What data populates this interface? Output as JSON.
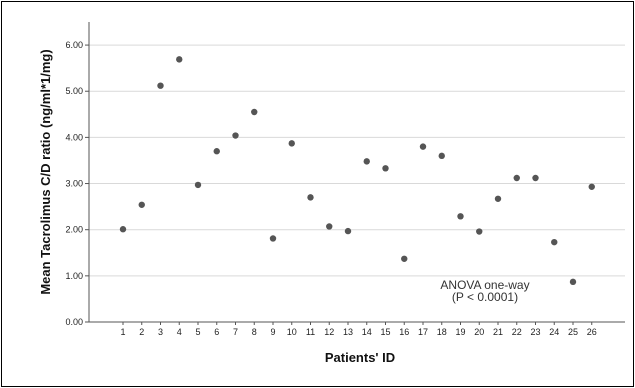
{
  "chart_data": {
    "type": "scatter",
    "xlabel": "Patients' ID",
    "ylabel": "Mean Tacrolimus C/D ratio (ng/ml*1/mg)",
    "ylim": [
      0,
      6.5
    ],
    "yticks": [
      "0.00",
      "1.00",
      "2.00",
      "3.00",
      "4.00",
      "5.00",
      "6.00"
    ],
    "grid": "horizontal",
    "point_color": "#555555",
    "x": [
      "1",
      "2",
      "3",
      "4",
      "5",
      "6",
      "7",
      "8",
      "9",
      "10",
      "11",
      "12",
      "13",
      "14",
      "15",
      "16",
      "17",
      "18",
      "19",
      "20",
      "21",
      "22",
      "23",
      "24",
      "25",
      "26"
    ],
    "y": [
      2.01,
      2.54,
      5.12,
      5.69,
      2.97,
      3.7,
      4.04,
      4.55,
      1.81,
      3.87,
      2.7,
      2.07,
      1.97,
      3.48,
      3.33,
      1.37,
      3.8,
      3.6,
      2.29,
      1.96,
      2.67,
      3.12,
      3.12,
      1.73,
      0.87,
      2.93
    ],
    "annotation": [
      "ANOVA one-way",
      "(P < 0.0001)"
    ]
  }
}
